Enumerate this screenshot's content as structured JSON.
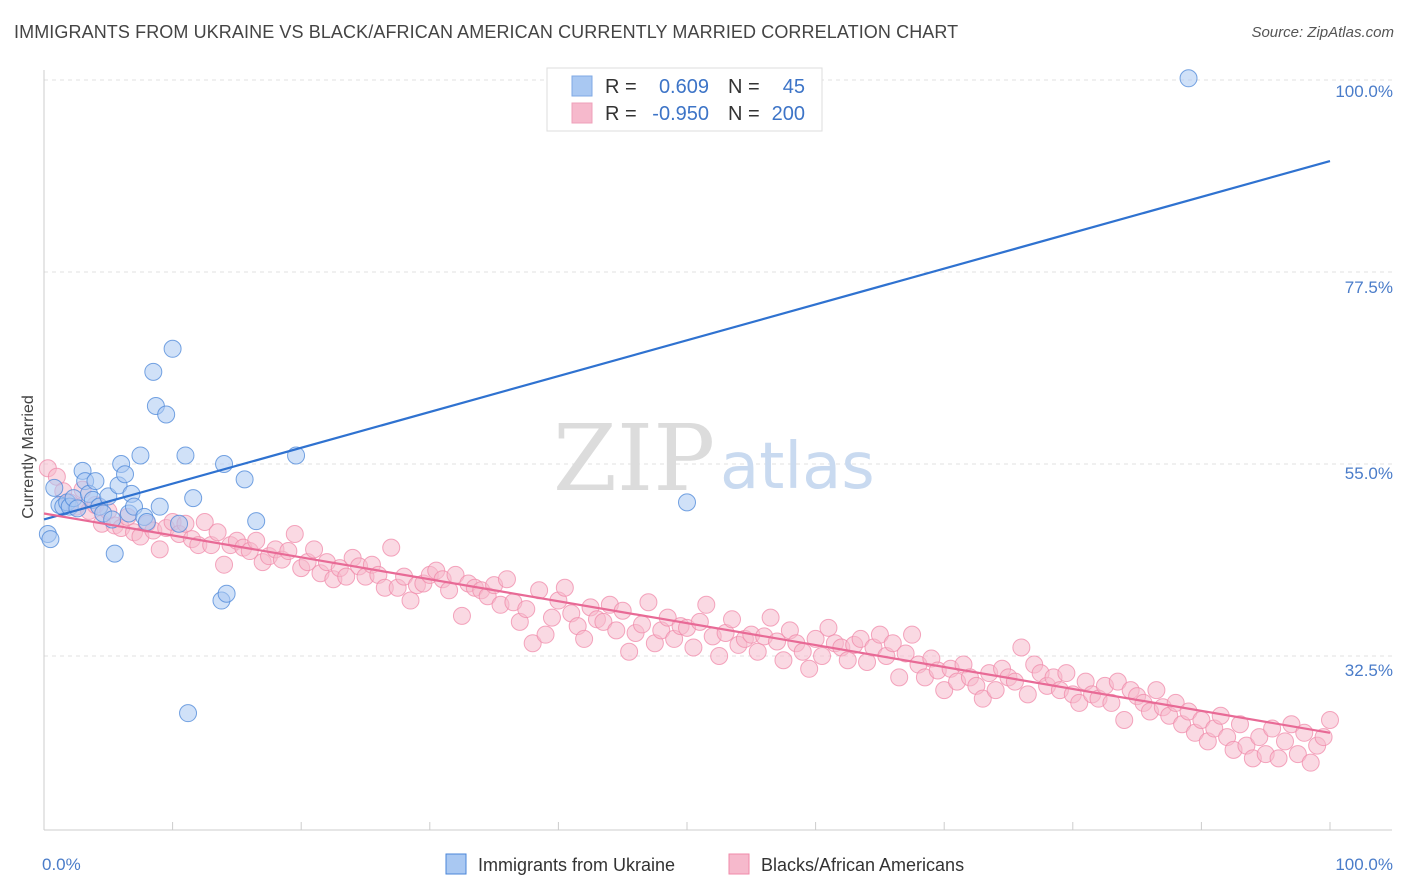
{
  "title": "IMMIGRANTS FROM UKRAINE VS BLACK/AFRICAN AMERICAN CURRENTLY MARRIED CORRELATION CHART",
  "source": "Source: ZipAtlas.com",
  "watermark": {
    "zip": "ZIP",
    "atlas": "atlas"
  },
  "legend_stats": [
    {
      "r_label": "R =",
      "r_value": "0.609",
      "n_label": "N =",
      "n_value": "45",
      "color": "#a9c8f2"
    },
    {
      "r_label": "R =",
      "r_value": "-0.950",
      "n_label": "N =",
      "n_value": "200",
      "color": "#f6b9cc"
    }
  ],
  "chart_data": {
    "type": "scatter",
    "xlabel": "",
    "ylabel": "Currently Married",
    "xlim": [
      0,
      100
    ],
    "ylim": [
      10,
      105
    ],
    "x_tick_labels": [
      "0.0%",
      "100.0%"
    ],
    "y_ticks": [
      {
        "value": 100,
        "label": "100.0%"
      },
      {
        "value": 77.5,
        "label": "77.5%"
      },
      {
        "value": 55,
        "label": "55.0%"
      },
      {
        "value": 32.5,
        "label": "32.5%"
      }
    ],
    "grid": true,
    "legend_position": "bottom",
    "series": [
      {
        "name": "Immigrants from Ukraine",
        "color": "#4a86d8",
        "fill": "#a9c8f2",
        "trend": {
          "x": [
            0,
            100
          ],
          "y": [
            48.5,
            90.5
          ],
          "color": "#2f72d0"
        },
        "points": [
          [
            0.3,
            46.8
          ],
          [
            0.5,
            46.2
          ],
          [
            0.8,
            52.2
          ],
          [
            1.2,
            50.2
          ],
          [
            1.5,
            50.0
          ],
          [
            1.8,
            50.5
          ],
          [
            2.0,
            50.0
          ],
          [
            2.3,
            51.0
          ],
          [
            2.6,
            49.8
          ],
          [
            3.0,
            54.2
          ],
          [
            3.2,
            53.0
          ],
          [
            3.5,
            51.5
          ],
          [
            3.8,
            50.8
          ],
          [
            4.0,
            53.0
          ],
          [
            4.3,
            50.0
          ],
          [
            4.6,
            49.2
          ],
          [
            5.0,
            51.2
          ],
          [
            5.3,
            48.5
          ],
          [
            5.5,
            44.5
          ],
          [
            5.8,
            52.5
          ],
          [
            6.0,
            55.0
          ],
          [
            6.3,
            53.8
          ],
          [
            6.6,
            49.2
          ],
          [
            6.8,
            51.5
          ],
          [
            7.0,
            50.0
          ],
          [
            7.5,
            56.0
          ],
          [
            7.8,
            48.8
          ],
          [
            8.0,
            48.2
          ],
          [
            8.5,
            65.8
          ],
          [
            8.7,
            61.8
          ],
          [
            9.0,
            50.0
          ],
          [
            9.5,
            60.8
          ],
          [
            10.0,
            68.5
          ],
          [
            10.5,
            48.0
          ],
          [
            11.0,
            56.0
          ],
          [
            11.2,
            25.8
          ],
          [
            11.6,
            51.0
          ],
          [
            13.8,
            39.0
          ],
          [
            14.0,
            55.0
          ],
          [
            14.2,
            39.8
          ],
          [
            15.6,
            53.2
          ],
          [
            16.5,
            48.3
          ],
          [
            19.6,
            56.0
          ],
          [
            50.0,
            50.5
          ],
          [
            89.0,
            100.2
          ]
        ]
      },
      {
        "name": "Blacks/African Americans",
        "color": "#f08aaa",
        "fill": "#f6b9cc",
        "trend": {
          "x": [
            0,
            100
          ],
          "y": [
            49.2,
            23.5
          ],
          "color": "#e86a96"
        },
        "points": [
          [
            0.3,
            54.5
          ],
          [
            1.0,
            53.5
          ],
          [
            1.5,
            51.8
          ],
          [
            2.0,
            50.5
          ],
          [
            2.5,
            50.0
          ],
          [
            3.0,
            52.0
          ],
          [
            3.5,
            49.5
          ],
          [
            4.0,
            50.2
          ],
          [
            4.5,
            48.0
          ],
          [
            5.0,
            49.5
          ],
          [
            5.5,
            47.8
          ],
          [
            6.0,
            47.5
          ],
          [
            6.5,
            48.8
          ],
          [
            7.0,
            47.0
          ],
          [
            7.5,
            46.5
          ],
          [
            8.0,
            48.0
          ],
          [
            8.5,
            47.2
          ],
          [
            9.0,
            45.0
          ],
          [
            9.5,
            47.5
          ],
          [
            10.0,
            48.2
          ],
          [
            10.5,
            46.8
          ],
          [
            11.0,
            48.0
          ],
          [
            11.5,
            46.2
          ],
          [
            12.0,
            45.5
          ],
          [
            12.5,
            48.2
          ],
          [
            13.0,
            45.5
          ],
          [
            13.5,
            47.0
          ],
          [
            14.0,
            43.2
          ],
          [
            14.5,
            45.5
          ],
          [
            15.0,
            46.0
          ],
          [
            15.5,
            45.2
          ],
          [
            16.0,
            44.8
          ],
          [
            16.5,
            46.0
          ],
          [
            17.0,
            43.5
          ],
          [
            17.5,
            44.2
          ],
          [
            18.0,
            45.0
          ],
          [
            18.5,
            43.8
          ],
          [
            19.0,
            44.8
          ],
          [
            19.5,
            46.8
          ],
          [
            20.0,
            42.8
          ],
          [
            20.5,
            43.5
          ],
          [
            21.0,
            45.0
          ],
          [
            21.5,
            42.2
          ],
          [
            22.0,
            43.5
          ],
          [
            22.5,
            41.5
          ],
          [
            23.0,
            42.8
          ],
          [
            23.5,
            41.8
          ],
          [
            24.0,
            44.0
          ],
          [
            24.5,
            43.0
          ],
          [
            25.0,
            41.8
          ],
          [
            25.5,
            43.2
          ],
          [
            26.0,
            42.0
          ],
          [
            26.5,
            40.5
          ],
          [
            27.0,
            45.2
          ],
          [
            27.5,
            40.5
          ],
          [
            28.0,
            41.8
          ],
          [
            28.5,
            39.0
          ],
          [
            29.0,
            40.8
          ],
          [
            29.5,
            41.0
          ],
          [
            30.0,
            42.0
          ],
          [
            30.5,
            42.5
          ],
          [
            31.0,
            41.5
          ],
          [
            31.5,
            40.2
          ],
          [
            32.0,
            42.0
          ],
          [
            32.5,
            37.2
          ],
          [
            33.0,
            41.0
          ],
          [
            33.5,
            40.5
          ],
          [
            34.0,
            40.2
          ],
          [
            34.5,
            39.5
          ],
          [
            35.0,
            40.8
          ],
          [
            35.5,
            38.5
          ],
          [
            36.0,
            41.5
          ],
          [
            36.5,
            38.8
          ],
          [
            37.0,
            36.5
          ],
          [
            37.5,
            38.0
          ],
          [
            38.0,
            34.0
          ],
          [
            38.5,
            40.2
          ],
          [
            39.0,
            35.0
          ],
          [
            39.5,
            37.0
          ],
          [
            40.0,
            39.0
          ],
          [
            40.5,
            40.5
          ],
          [
            41.0,
            37.5
          ],
          [
            41.5,
            36.0
          ],
          [
            42.0,
            34.5
          ],
          [
            42.5,
            38.2
          ],
          [
            43.0,
            36.8
          ],
          [
            43.5,
            36.5
          ],
          [
            44.0,
            38.5
          ],
          [
            44.5,
            35.5
          ],
          [
            45.0,
            37.8
          ],
          [
            45.5,
            33.0
          ],
          [
            46.0,
            35.2
          ],
          [
            46.5,
            36.2
          ],
          [
            47.0,
            38.8
          ],
          [
            47.5,
            34.0
          ],
          [
            48.0,
            35.5
          ],
          [
            48.5,
            37.0
          ],
          [
            49.0,
            34.5
          ],
          [
            49.5,
            36.0
          ],
          [
            50.0,
            35.8
          ],
          [
            50.5,
            33.5
          ],
          [
            51.0,
            36.5
          ],
          [
            51.5,
            38.5
          ],
          [
            52.0,
            34.8
          ],
          [
            52.5,
            32.5
          ],
          [
            53.0,
            35.2
          ],
          [
            53.5,
            36.8
          ],
          [
            54.0,
            33.8
          ],
          [
            54.5,
            34.5
          ],
          [
            55.0,
            35.0
          ],
          [
            55.5,
            33.0
          ],
          [
            56.0,
            34.8
          ],
          [
            56.5,
            37.0
          ],
          [
            57.0,
            34.2
          ],
          [
            57.5,
            32.0
          ],
          [
            58.0,
            35.5
          ],
          [
            58.5,
            34.0
          ],
          [
            59.0,
            33.0
          ],
          [
            59.5,
            31.0
          ],
          [
            60.0,
            34.5
          ],
          [
            60.5,
            32.5
          ],
          [
            61.0,
            35.8
          ],
          [
            61.5,
            34.0
          ],
          [
            62.0,
            33.5
          ],
          [
            62.5,
            32.0
          ],
          [
            63.0,
            33.8
          ],
          [
            63.5,
            34.5
          ],
          [
            64.0,
            31.8
          ],
          [
            64.5,
            33.5
          ],
          [
            65.0,
            35.0
          ],
          [
            65.5,
            32.5
          ],
          [
            66.0,
            34.0
          ],
          [
            66.5,
            30.0
          ],
          [
            67.0,
            32.8
          ],
          [
            67.5,
            35.0
          ],
          [
            68.0,
            31.5
          ],
          [
            68.5,
            30.0
          ],
          [
            69.0,
            32.2
          ],
          [
            69.5,
            30.8
          ],
          [
            70.0,
            28.5
          ],
          [
            70.5,
            31.0
          ],
          [
            71.0,
            29.5
          ],
          [
            71.5,
            31.5
          ],
          [
            72.0,
            30.0
          ],
          [
            72.5,
            29.0
          ],
          [
            73.0,
            27.5
          ],
          [
            73.5,
            30.5
          ],
          [
            74.0,
            28.5
          ],
          [
            74.5,
            31.0
          ],
          [
            75.0,
            30.0
          ],
          [
            75.5,
            29.5
          ],
          [
            76.0,
            33.5
          ],
          [
            76.5,
            28.0
          ],
          [
            77.0,
            31.5
          ],
          [
            77.5,
            30.5
          ],
          [
            78.0,
            29.0
          ],
          [
            78.5,
            30.0
          ],
          [
            79.0,
            28.5
          ],
          [
            79.5,
            30.5
          ],
          [
            80.0,
            28.0
          ],
          [
            80.5,
            27.0
          ],
          [
            81.0,
            29.5
          ],
          [
            81.5,
            28.0
          ],
          [
            82.0,
            27.5
          ],
          [
            82.5,
            29.0
          ],
          [
            83.0,
            27.0
          ],
          [
            83.5,
            29.5
          ],
          [
            84.0,
            25.0
          ],
          [
            84.5,
            28.5
          ],
          [
            85.0,
            27.8
          ],
          [
            85.5,
            27.0
          ],
          [
            86.0,
            26.0
          ],
          [
            86.5,
            28.5
          ],
          [
            87.0,
            26.5
          ],
          [
            87.5,
            25.5
          ],
          [
            88.0,
            27.0
          ],
          [
            88.5,
            24.5
          ],
          [
            89.0,
            26.0
          ],
          [
            89.5,
            23.5
          ],
          [
            90.0,
            25.0
          ],
          [
            90.5,
            22.5
          ],
          [
            91.0,
            24.0
          ],
          [
            91.5,
            25.5
          ],
          [
            92.0,
            23.0
          ],
          [
            92.5,
            21.5
          ],
          [
            93.0,
            24.5
          ],
          [
            93.5,
            22.0
          ],
          [
            94.0,
            20.5
          ],
          [
            94.5,
            23.0
          ],
          [
            95.0,
            21.0
          ],
          [
            95.5,
            24.0
          ],
          [
            96.0,
            20.5
          ],
          [
            96.5,
            22.5
          ],
          [
            97.0,
            24.5
          ],
          [
            97.5,
            21.0
          ],
          [
            98.0,
            23.5
          ],
          [
            98.5,
            20.0
          ],
          [
            99.0,
            22.0
          ],
          [
            99.5,
            23.0
          ],
          [
            100.0,
            25.0
          ]
        ]
      }
    ]
  }
}
